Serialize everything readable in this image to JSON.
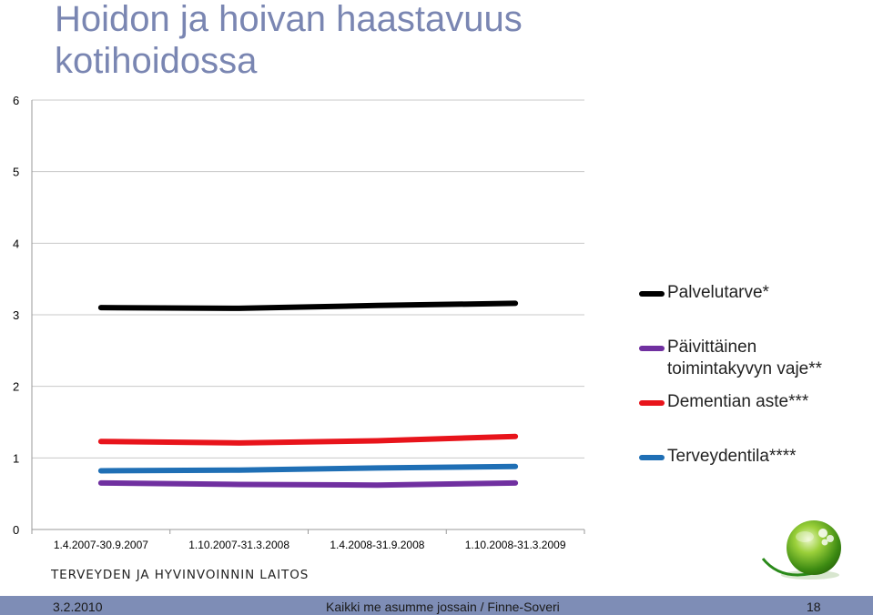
{
  "slide": {
    "title": "Hoidon ja hoivan haastavuus kotihoidossa",
    "organization": "TERVEYDEN JA HYVINVOINNIN LAITOS",
    "footer": {
      "date": "3.2.2010",
      "center": "Kaikki me asumme jossain / Finne-Soveri",
      "page": "18"
    }
  },
  "chart_data": {
    "type": "line",
    "title": "",
    "xlabel": "",
    "ylabel": "",
    "categories": [
      "1.4.2007-30.9.2007",
      "1.10.2007-31.3.2008",
      "1.4.2008-31.9.2008",
      "1.10.2008-31.3.2009"
    ],
    "ylim": [
      0,
      6
    ],
    "yticks": [
      "0",
      "1",
      "2",
      "3",
      "4",
      "5",
      "6"
    ],
    "grid": true,
    "legend_position": "right",
    "series": [
      {
        "name": "Palvelutarve*",
        "color": "#000000",
        "values": [
          3.1,
          3.09,
          3.13,
          3.16
        ]
      },
      {
        "name": "Päivittäinen toimintakyvyn vaje**",
        "color": "#7030a0",
        "values": [
          0.65,
          0.63,
          0.62,
          0.65
        ]
      },
      {
        "name": "Dementian aste***",
        "color": "#e8141b",
        "values": [
          1.23,
          1.21,
          1.24,
          1.3
        ]
      },
      {
        "name": "Terveydentila****",
        "color": "#1f6fb5",
        "values": [
          0.82,
          0.83,
          0.86,
          0.88
        ]
      }
    ]
  }
}
